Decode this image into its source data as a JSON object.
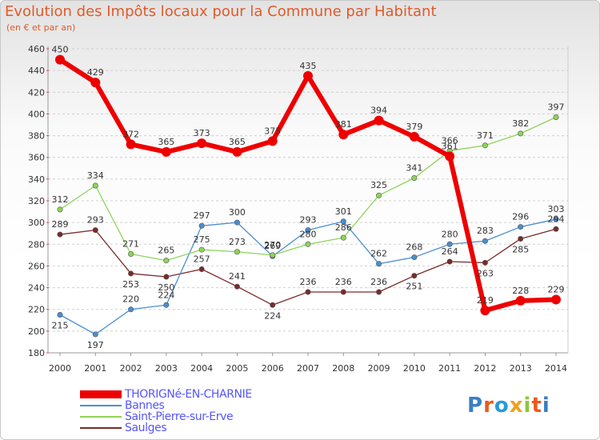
{
  "title": "Evolution des Impôts locaux pour la Commune par Habitant",
  "subtitle": "(en € et par an)",
  "logo": {
    "letters": [
      "P",
      "r",
      "o",
      "x",
      "i",
      "t",
      "i"
    ],
    "colors": [
      "#3a7fc4",
      "#e85a1c",
      "#2a9ad8",
      "#f0a020",
      "#8cc63f",
      "#e85a1c",
      "#3a7fc4"
    ]
  },
  "chart_data": {
    "type": "line",
    "title": "Evolution des Impôts locaux pour la Commune par Habitant",
    "subtitle": "(en € et par an)",
    "xlabel": "",
    "ylabel": "",
    "ylim": [
      180,
      460
    ],
    "yticks": [
      180,
      200,
      220,
      240,
      260,
      280,
      300,
      320,
      340,
      360,
      380,
      400,
      420,
      440,
      460
    ],
    "categories": [
      "2000",
      "2001",
      "2002",
      "2003",
      "2004",
      "2005",
      "2006",
      "2007",
      "2008",
      "2009",
      "2010",
      "2011",
      "2012",
      "2013",
      "2014"
    ],
    "grid": "horizontal dashed",
    "legend": "bottom-left",
    "series": [
      {
        "name": "Saulges",
        "color": "#7a2a2a",
        "values": [
          289,
          293,
          253,
          250,
          257,
          241,
          224,
          236,
          236,
          236,
          251,
          264,
          263,
          285,
          294
        ]
      },
      {
        "name": "Bannes",
        "color": "#4a8ed0",
        "values": [
          215,
          197,
          220,
          224,
          297,
          300,
          269,
          293,
          301,
          262,
          268,
          280,
          283,
          296,
          303
        ]
      },
      {
        "name": "Saint-Pierre-sur-Erve",
        "color": "#8ed45a",
        "values": [
          312,
          334,
          271,
          265,
          275,
          273,
          270,
          280,
          286,
          325,
          341,
          366,
          371,
          382,
          397
        ]
      },
      {
        "name": "THORIGNé-EN-CHARNIE",
        "color": "#ee0000",
        "values": [
          450,
          429,
          372,
          365,
          373,
          365,
          375,
          435,
          381,
          394,
          379,
          361,
          219,
          228,
          229
        ]
      }
    ],
    "legend_order": [
      "THORIGNé-EN-CHARNIE",
      "Bannes",
      "Saint-Pierre-sur-Erve",
      "Saulges"
    ]
  }
}
